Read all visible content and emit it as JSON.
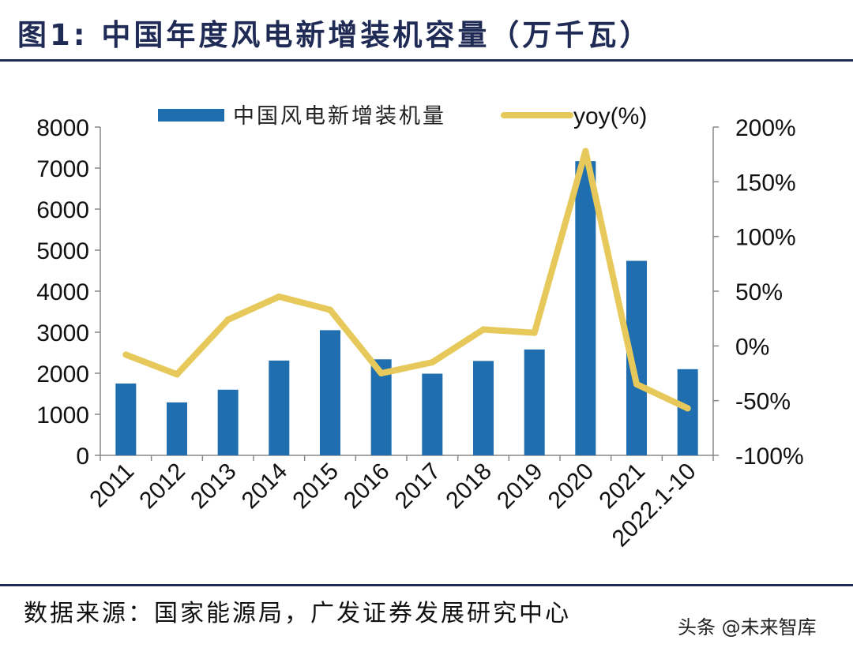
{
  "title": "图1:  中国年度风电新增装机容量（万千瓦）",
  "source": "数据来源：国家能源局，广发证券发展研究中心",
  "watermark": "头条 @未来智库",
  "colors": {
    "bar": "#1f6eb0",
    "line": "#e6c95a",
    "title": "#1f2a55"
  },
  "chart_data": {
    "type": "bar+line",
    "categories": [
      "2011",
      "2012",
      "2013",
      "2014",
      "2015",
      "2016",
      "2017",
      "2018",
      "2019",
      "2020",
      "2021",
      "2022.1-10"
    ],
    "series": [
      {
        "name": "中国风电新增装机量",
        "type": "bar",
        "axis": "left",
        "values": [
          1750,
          1290,
          1600,
          2310,
          3050,
          2340,
          1990,
          2300,
          2580,
          7170,
          4740,
          2100
        ]
      },
      {
        "name": "yoy(%)",
        "type": "line",
        "axis": "right",
        "values": [
          -8,
          -26,
          24,
          45,
          33,
          -25,
          -15,
          15,
          12,
          178,
          -35,
          -57
        ]
      }
    ],
    "y_left": {
      "min": 0,
      "max": 8000,
      "ticks": [
        0,
        1000,
        2000,
        3000,
        4000,
        5000,
        6000,
        7000,
        8000
      ]
    },
    "y_right": {
      "min": -100,
      "max": 200,
      "ticks": [
        -100,
        -50,
        0,
        50,
        100,
        150,
        200
      ],
      "tick_labels": [
        "-100%",
        "-50%",
        "0%",
        "50%",
        "100%",
        "150%",
        "200%"
      ]
    },
    "legend_position": "top-center"
  }
}
